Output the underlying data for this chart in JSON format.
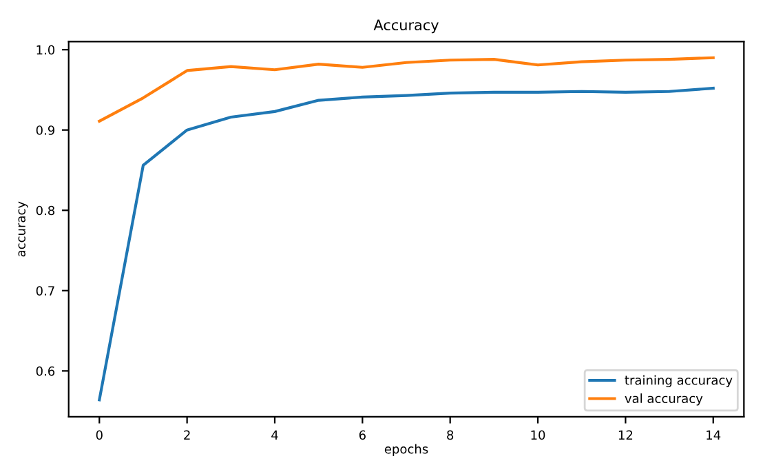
{
  "chart_data": {
    "type": "line",
    "title": "Accuracy",
    "xlabel": "epochs",
    "ylabel": "accuracy",
    "x": [
      0,
      1,
      2,
      3,
      4,
      5,
      6,
      7,
      8,
      9,
      10,
      11,
      12,
      13,
      14
    ],
    "series": [
      {
        "name": "training accuracy",
        "color": "#1f77b4",
        "values": [
          0.564,
          0.856,
          0.9,
          0.916,
          0.923,
          0.937,
          0.941,
          0.943,
          0.946,
          0.947,
          0.947,
          0.948,
          0.947,
          0.948,
          0.952
        ]
      },
      {
        "name": "val accuracy",
        "color": "#ff7f0e",
        "values": [
          0.911,
          0.94,
          0.974,
          0.979,
          0.975,
          0.982,
          0.978,
          0.984,
          0.987,
          0.988,
          0.981,
          0.985,
          0.987,
          0.988,
          0.99
        ]
      }
    ],
    "xlim": [
      -0.7,
      14.7
    ],
    "ylim": [
      0.543,
      1.01
    ],
    "xticks": [
      0,
      2,
      4,
      6,
      8,
      10,
      12,
      14
    ],
    "yticks": [
      {
        "value": 0.6,
        "label": "0.6"
      },
      {
        "value": 0.7,
        "label": "0.7"
      },
      {
        "value": 0.8,
        "label": "0.8"
      },
      {
        "value": 0.9,
        "label": "0.9"
      },
      {
        "value": 1.0,
        "label": "1.0"
      }
    ],
    "legend": "lower right",
    "grid": false
  }
}
